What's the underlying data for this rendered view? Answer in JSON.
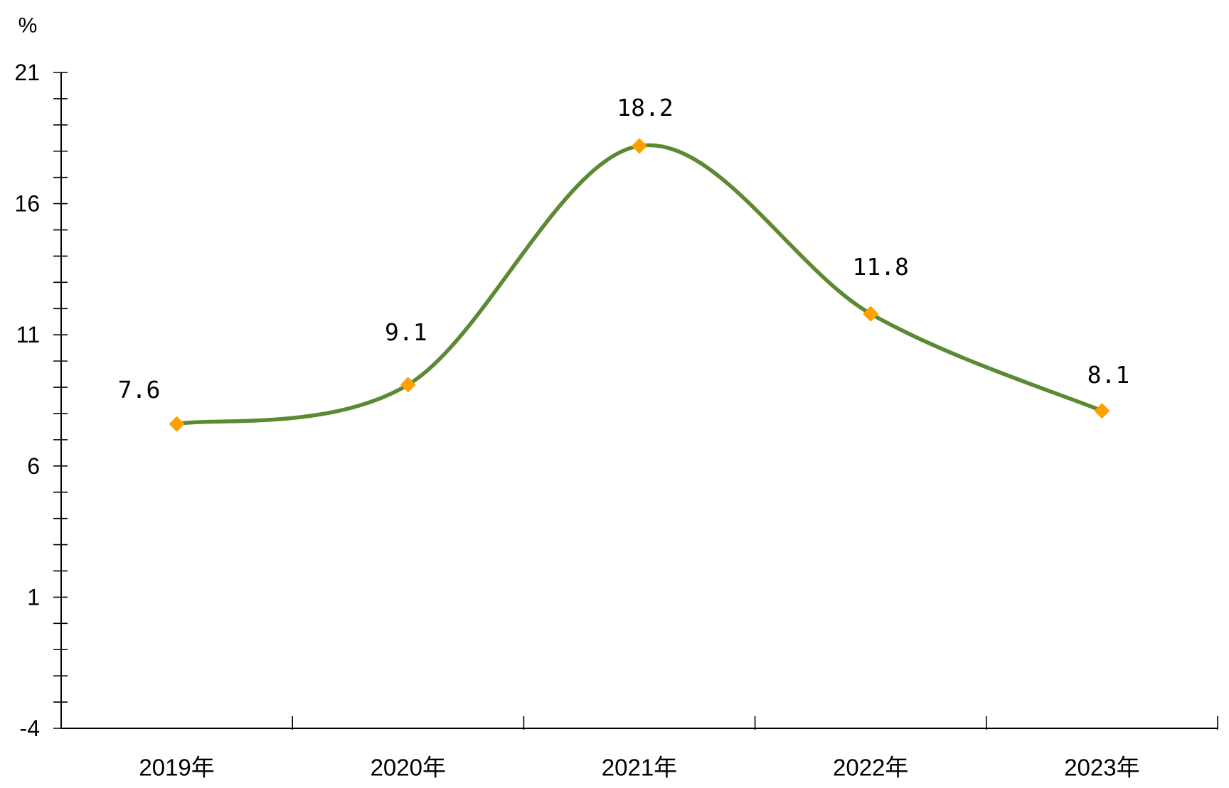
{
  "chart_data": {
    "type": "line",
    "smooth": true,
    "categories": [
      "2019年",
      "2020年",
      "2021年",
      "2022年",
      "2023年"
    ],
    "series": [
      {
        "values": [
          7.6,
          9.1,
          18.2,
          11.8,
          8.1
        ],
        "line_color": "#5b8a33",
        "marker_color": "#ffa000",
        "marker": "diamond"
      }
    ],
    "data_labels_shown": true,
    "ylabel": "%",
    "xlabel": "",
    "title": "",
    "ylim": [
      -4,
      21
    ],
    "yticks": [
      -4,
      1,
      6,
      11,
      16,
      21
    ],
    "y_minor_tick_step": 1,
    "grid": false,
    "legend": "none"
  }
}
